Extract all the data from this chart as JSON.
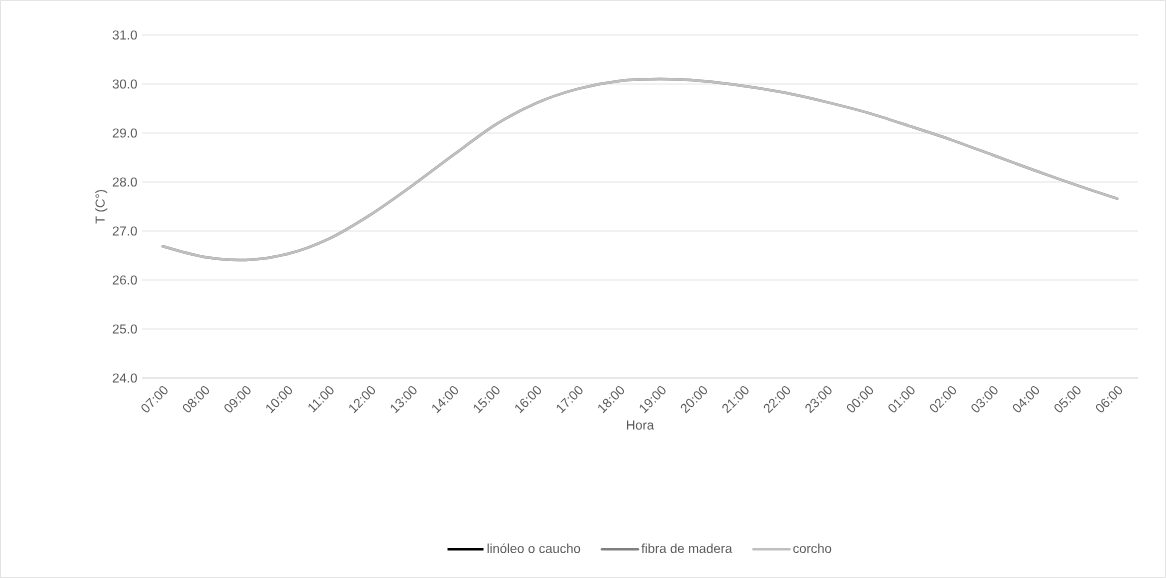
{
  "chart_data": {
    "type": "line",
    "xlabel": "Hora",
    "ylabel": "T (C°)",
    "categories": [
      "07:00",
      "08:00",
      "09:00",
      "10:00",
      "11:00",
      "12:00",
      "13:00",
      "14:00",
      "15:00",
      "16:00",
      "17:00",
      "18:00",
      "19:00",
      "20:00",
      "21:00",
      "22:00",
      "23:00",
      "00:00",
      "01:00",
      "02:00",
      "03:00",
      "04:00",
      "05:00",
      "06:00"
    ],
    "series": [
      {
        "name": "linóleo o caucho",
        "color": "#000000",
        "values": [
          null,
          null,
          null,
          null,
          null,
          null,
          null,
          null,
          null,
          null,
          null,
          null,
          null,
          null,
          null,
          null,
          null,
          null,
          null,
          null,
          null,
          null,
          null,
          null
        ]
      },
      {
        "name": "fibra de madera",
        "color": "#808080",
        "values": [
          26.69,
          26.47,
          26.41,
          26.53,
          26.84,
          27.33,
          27.92,
          28.55,
          29.16,
          29.61,
          29.9,
          30.06,
          30.1,
          30.06,
          29.96,
          29.82,
          29.63,
          29.41,
          29.14,
          28.86,
          28.55,
          28.24,
          27.94,
          27.66
        ]
      },
      {
        "name": "corcho",
        "color": "#bfbfbf",
        "values": [
          26.69,
          26.47,
          26.41,
          26.53,
          26.84,
          27.33,
          27.92,
          28.55,
          29.16,
          29.61,
          29.9,
          30.06,
          30.1,
          30.06,
          29.96,
          29.82,
          29.63,
          29.41,
          29.14,
          28.86,
          28.55,
          28.24,
          27.94,
          27.66
        ]
      }
    ],
    "ylim": [
      24,
      31
    ],
    "yticks": [
      {
        "value": 24,
        "label": "24.0"
      },
      {
        "value": 25,
        "label": "25.0"
      },
      {
        "value": 26,
        "label": "26.0"
      },
      {
        "value": 27,
        "label": "27.0"
      },
      {
        "value": 28,
        "label": "28.0"
      },
      {
        "value": 29,
        "label": "29.0"
      },
      {
        "value": 30,
        "label": "30.0"
      },
      {
        "value": 31,
        "label": "31.0"
      }
    ],
    "grid": "y",
    "legend": "bottom",
    "marker": "none",
    "line_style": "solid"
  }
}
